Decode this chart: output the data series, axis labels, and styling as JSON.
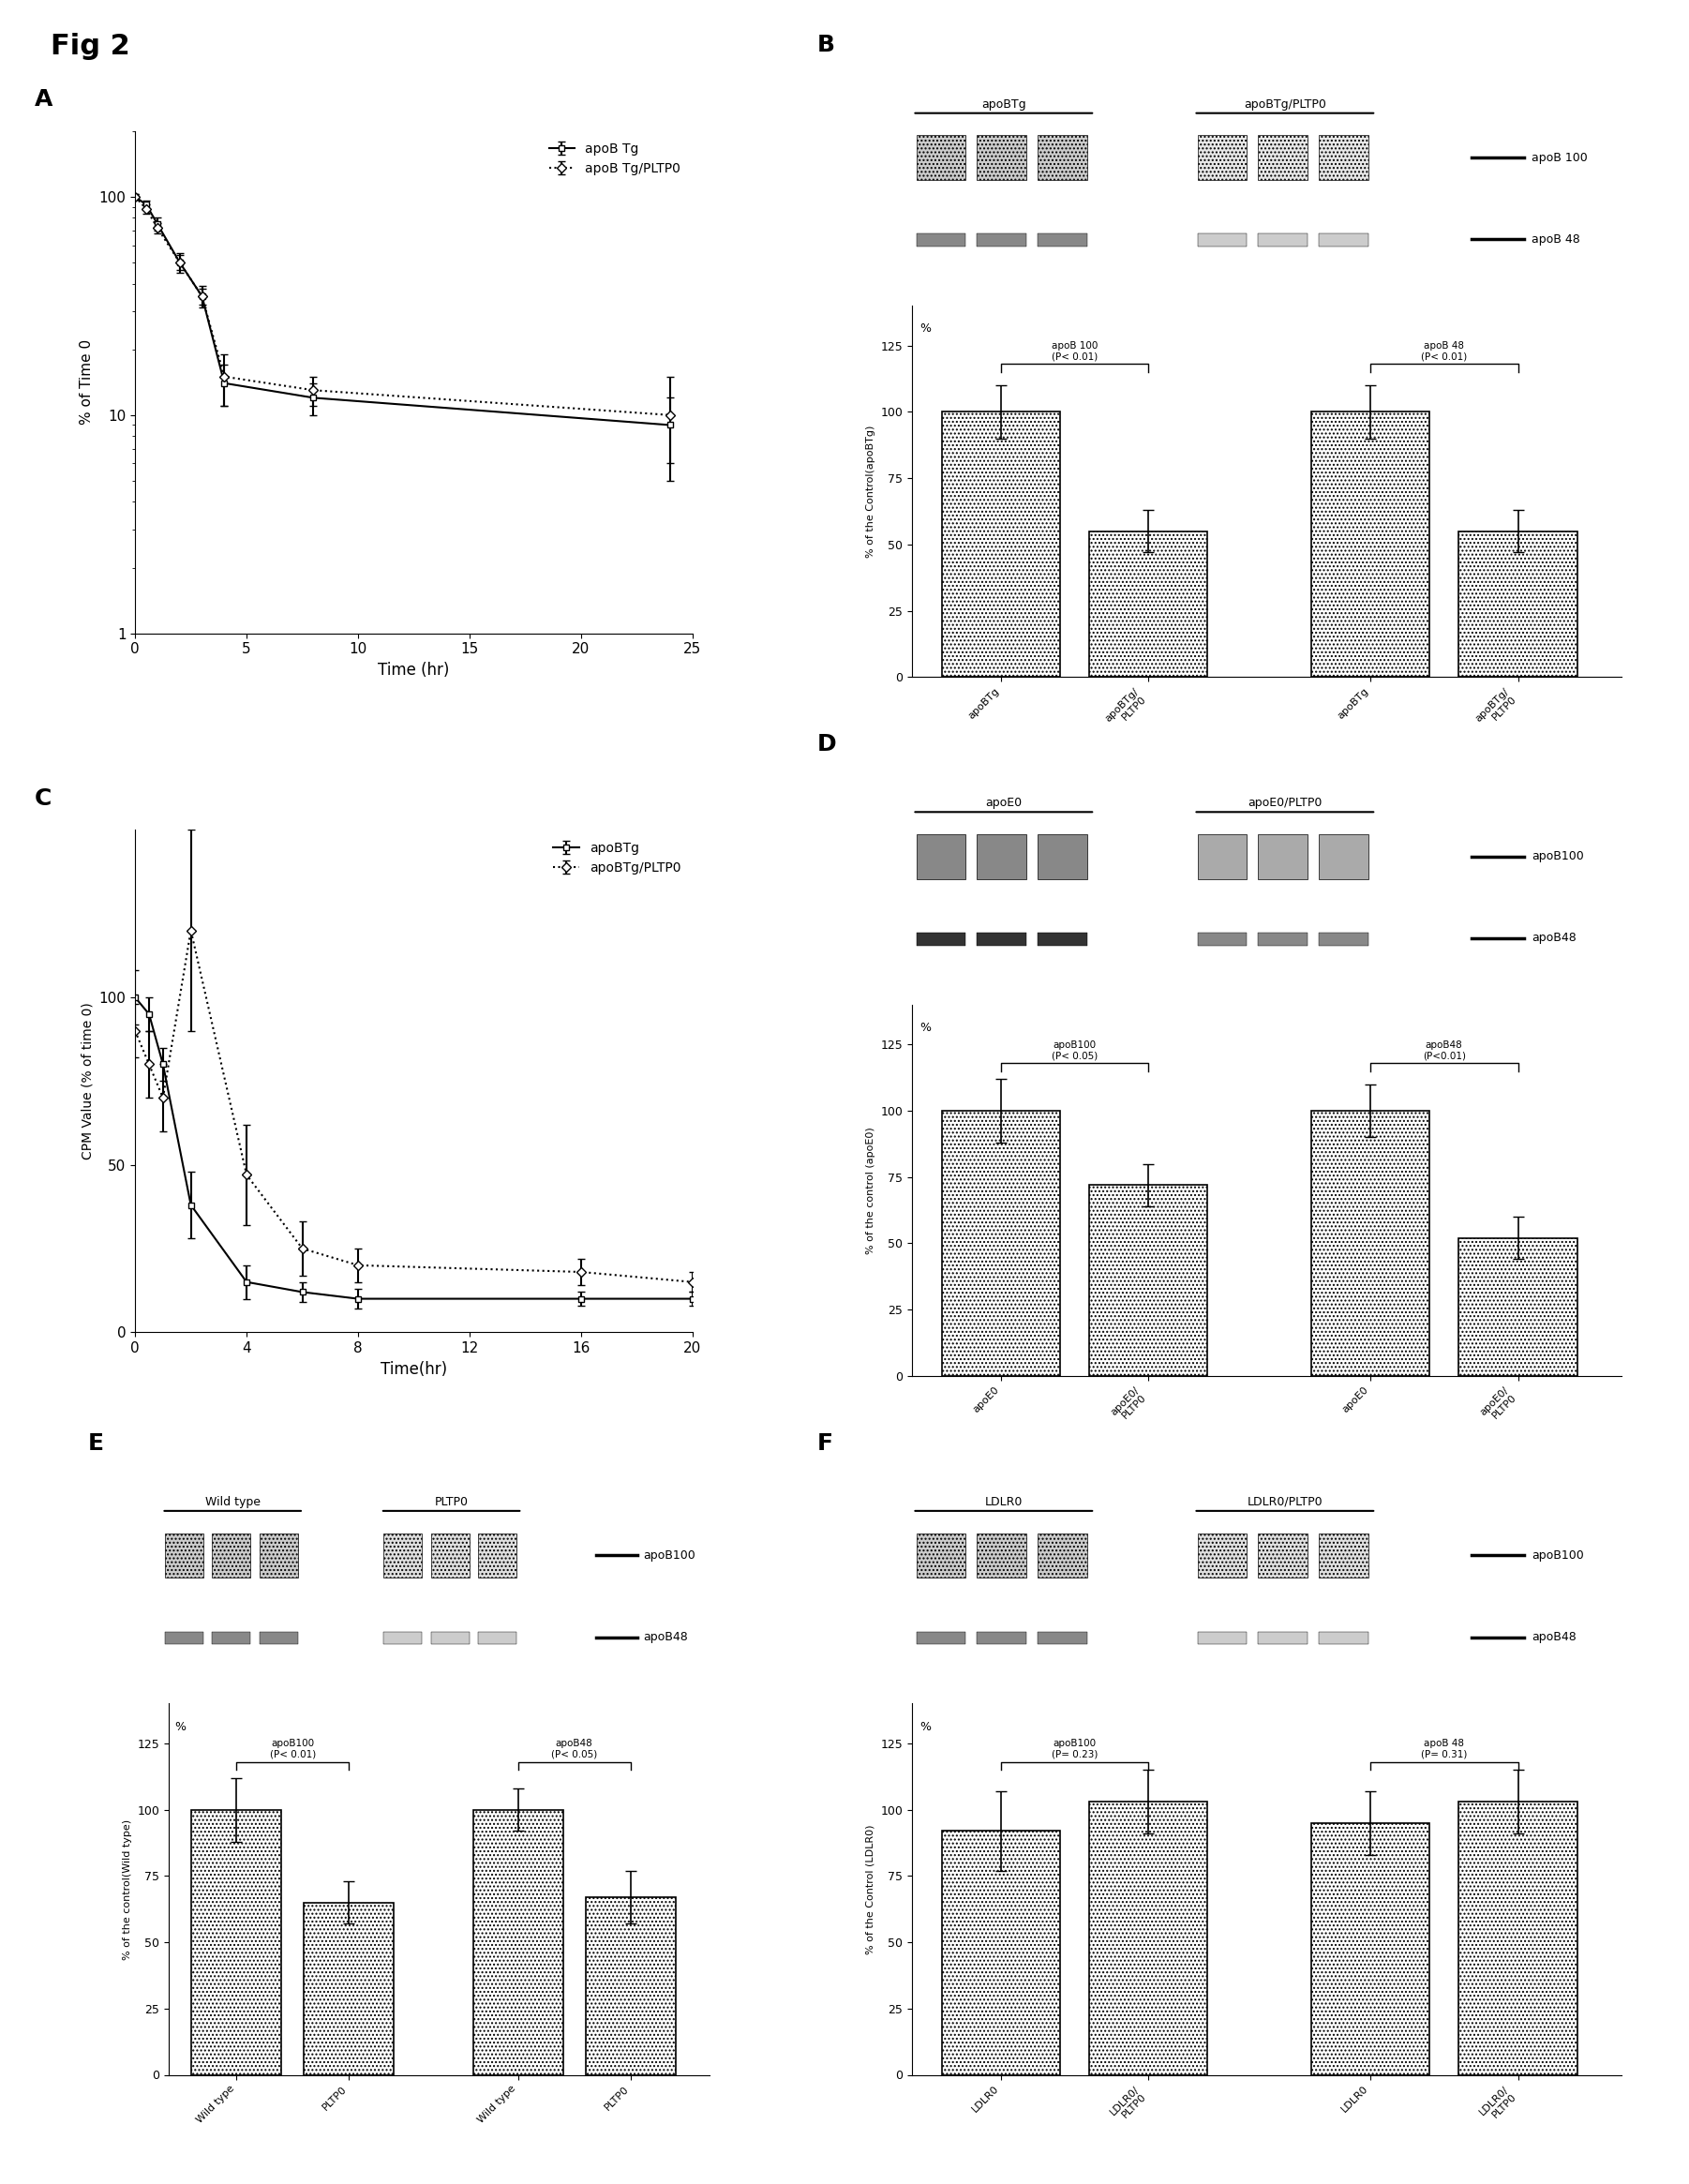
{
  "fig_label": "Fig 2",
  "panel_A": {
    "label": "A",
    "x_apoB_Tg": [
      0,
      0.5,
      1,
      2,
      3,
      4,
      8,
      24
    ],
    "y_apoB_Tg": [
      100,
      92,
      75,
      50,
      35,
      14,
      12,
      9
    ],
    "yerr_apoB_Tg": [
      3,
      4,
      5,
      5,
      4,
      3,
      2,
      3
    ],
    "x_apoB_Tg_PLTP0": [
      0,
      0.5,
      1,
      2,
      3,
      4,
      8,
      24
    ],
    "y_apoB_Tg_PLTP0": [
      100,
      88,
      72,
      50,
      35,
      15,
      13,
      10
    ],
    "yerr_apoB_Tg_PLTP0": [
      3,
      4,
      4,
      4,
      3,
      4,
      2,
      5
    ],
    "xlabel": "Time (hr)",
    "ylabel": "% of Time 0",
    "xlim": [
      0,
      25
    ],
    "ylim_log": [
      1,
      200
    ],
    "yticks": [
      1,
      10,
      100
    ],
    "xticks": [
      0,
      5,
      10,
      15,
      20,
      25
    ],
    "legend1": "apoB Tg",
    "legend2": "apoB Tg/PLTP0"
  },
  "panel_B": {
    "label": "B",
    "gel_label1": "apoBTg",
    "gel_label2": "apoBTg/PLTP0",
    "band_legend1": "apoB 100",
    "band_legend2": "apoB 48",
    "bar_values": [
      100,
      55,
      100,
      55
    ],
    "bar_errors": [
      10,
      8,
      10,
      8
    ],
    "bar_xlabels": [
      "apoBTg",
      "apoBTg/\nPLTP0",
      "apoBTg",
      "apoBTg/\nPLTP0"
    ],
    "title1": "apoB 100\n(P< 0.01)",
    "title2": "apoB 48\n(P< 0.01)",
    "ylabel": "% of the Control(apoBTg)",
    "ylim": [
      0,
      140
    ],
    "yticks": [
      0,
      25,
      50,
      75,
      100,
      125
    ]
  },
  "panel_C": {
    "label": "C",
    "x_apoB_Tg": [
      0,
      0.5,
      1,
      2,
      4,
      6,
      8,
      16,
      20
    ],
    "y_apoB_Tg": [
      100,
      95,
      80,
      38,
      15,
      12,
      10,
      10,
      10
    ],
    "yerr_apoB_Tg": [
      8,
      5,
      5,
      10,
      5,
      3,
      3,
      2,
      2
    ],
    "x_apoB_Tg_PLTP0": [
      0,
      0.5,
      1,
      2,
      4,
      6,
      8,
      16,
      20
    ],
    "y_apoB_Tg_PLTP0": [
      90,
      80,
      70,
      120,
      47,
      25,
      20,
      18,
      15
    ],
    "yerr_apoB_Tg_PLTP0": [
      8,
      10,
      10,
      30,
      15,
      8,
      5,
      4,
      3
    ],
    "xlabel": "Time(hr)",
    "ylabel": "CPM Value (% of time 0)",
    "xlim": [
      0,
      20
    ],
    "ylim": [
      0,
      150
    ],
    "yticks": [
      0,
      50,
      100
    ],
    "xticks": [
      0,
      4,
      8,
      12,
      16,
      20
    ],
    "legend1": "apoBTg",
    "legend2": "apoBTg/PLTP0"
  },
  "panel_D": {
    "label": "D",
    "gel_label1": "apoE0",
    "gel_label2": "apoE0/PLTP0",
    "band_legend1": "apoB100",
    "band_legend2": "apoB48",
    "bar_values": [
      100,
      72,
      100,
      52
    ],
    "bar_errors": [
      12,
      8,
      10,
      8
    ],
    "bar_xlabels": [
      "apoE0",
      "apoE0/\nPLTP0",
      "apoE0",
      "apoE0/\nPLTP0"
    ],
    "title1": "apoB100\n(P< 0.05)",
    "title2": "apoB48\n(P<0.01)",
    "ylabel": "% of the control (apoE0)",
    "ylim": [
      0,
      140
    ],
    "yticks": [
      0,
      25,
      50,
      75,
      100,
      125
    ]
  },
  "panel_E": {
    "label": "E",
    "gel_label1": "Wild type",
    "gel_label2": "PLTP0",
    "band_legend1": "apoB100",
    "band_legend2": "apoB48",
    "bar_values": [
      100,
      65,
      100,
      67
    ],
    "bar_errors": [
      12,
      8,
      8,
      10
    ],
    "bar_xlabels": [
      "Wild type",
      "PLTP0",
      "Wild type",
      "PLTP0"
    ],
    "title1": "apoB100\n(P< 0.01)",
    "title2": "apoB48\n(P< 0.05)",
    "ylabel": "% of the control(Wild type)",
    "ylim": [
      0,
      140
    ],
    "yticks": [
      0,
      25,
      50,
      75,
      100,
      125
    ]
  },
  "panel_F": {
    "label": "F",
    "gel_label1": "LDLR0",
    "gel_label2": "LDLR0/PLTP0",
    "band_legend1": "apoB100",
    "band_legend2": "apoB48",
    "bar_values": [
      92,
      103,
      95,
      103
    ],
    "bar_errors": [
      15,
      12,
      12,
      12
    ],
    "bar_xlabels": [
      "LDLR0",
      "LDLR0/\nPLTP0",
      "LDLR0",
      "LDLR0/\nPLTP0"
    ],
    "title1": "apoB100\n(P= 0.23)",
    "title2": "apoB 48\n(P= 0.31)",
    "ylabel": "% of the Control (LDLR0)",
    "ylim": [
      0,
      140
    ],
    "yticks": [
      0,
      25,
      50,
      75,
      100,
      125
    ]
  }
}
